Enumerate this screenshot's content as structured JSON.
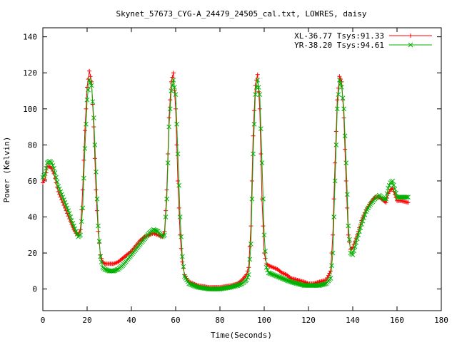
{
  "chart_data": {
    "type": "line",
    "title": "Skynet_57673_CYG-A_24479_24505_cal.txt, LOWRES, daisy",
    "xlabel": "Time(Seconds)",
    "ylabel": "Power (Kelvin)",
    "xlim": [
      0,
      180
    ],
    "ylim": [
      -12,
      145
    ],
    "xticks": [
      "0",
      "20",
      "40",
      "60",
      "80",
      "100",
      "120",
      "140",
      "160",
      "180"
    ],
    "yticks": [
      "0",
      "20",
      "40",
      "60",
      "80",
      "100",
      "120",
      "140"
    ],
    "legend_position": "top-right",
    "grid": false,
    "series": [
      {
        "name": "XL-36.77 Tsys:91.33",
        "color": "#ff0000",
        "marker": "plus",
        "points": [
          [
            0,
            59
          ],
          [
            1,
            61
          ],
          [
            2,
            68
          ],
          [
            3,
            68
          ],
          [
            4,
            67
          ],
          [
            5,
            64
          ],
          [
            6,
            59
          ],
          [
            7,
            54
          ],
          [
            8,
            51
          ],
          [
            9,
            48
          ],
          [
            10,
            45
          ],
          [
            11,
            42
          ],
          [
            12,
            39
          ],
          [
            13,
            36
          ],
          [
            14,
            33
          ],
          [
            15,
            31
          ],
          [
            16,
            30
          ],
          [
            17,
            33
          ],
          [
            18,
            55
          ],
          [
            19,
            88
          ],
          [
            20,
            112
          ],
          [
            21,
            121
          ],
          [
            22,
            115
          ],
          [
            23,
            90
          ],
          [
            24,
            55
          ],
          [
            25,
            32
          ],
          [
            26,
            19
          ],
          [
            27,
            15
          ],
          [
            28,
            14
          ],
          [
            30,
            14
          ],
          [
            32,
            14
          ],
          [
            34,
            15
          ],
          [
            36,
            17
          ],
          [
            38,
            19
          ],
          [
            40,
            21
          ],
          [
            42,
            24
          ],
          [
            44,
            27
          ],
          [
            46,
            29
          ],
          [
            48,
            30
          ],
          [
            50,
            31
          ],
          [
            52,
            30
          ],
          [
            54,
            29
          ],
          [
            55,
            32
          ],
          [
            56,
            55
          ],
          [
            57,
            95
          ],
          [
            58,
            115
          ],
          [
            59,
            120
          ],
          [
            60,
            100
          ],
          [
            61,
            60
          ],
          [
            62,
            30
          ],
          [
            63,
            15
          ],
          [
            64,
            8
          ],
          [
            66,
            4
          ],
          [
            68,
            3
          ],
          [
            70,
            2
          ],
          [
            75,
            1
          ],
          [
            80,
            1
          ],
          [
            85,
            2
          ],
          [
            88,
            3
          ],
          [
            90,
            5
          ],
          [
            92,
            8
          ],
          [
            93,
            12
          ],
          [
            94,
            35
          ],
          [
            95,
            85
          ],
          [
            96,
            113
          ],
          [
            97,
            119
          ],
          [
            98,
            100
          ],
          [
            99,
            50
          ],
          [
            100,
            20
          ],
          [
            101,
            14
          ],
          [
            102,
            13
          ],
          [
            104,
            12
          ],
          [
            106,
            11
          ],
          [
            108,
            9
          ],
          [
            110,
            8
          ],
          [
            112,
            6
          ],
          [
            115,
            5
          ],
          [
            118,
            4
          ],
          [
            120,
            3
          ],
          [
            122,
            3
          ],
          [
            125,
            4
          ],
          [
            128,
            5
          ],
          [
            130,
            10
          ],
          [
            131,
            30
          ],
          [
            132,
            70
          ],
          [
            133,
            105
          ],
          [
            134,
            118
          ],
          [
            135,
            115
          ],
          [
            136,
            95
          ],
          [
            137,
            60
          ],
          [
            138,
            30
          ],
          [
            139,
            22
          ],
          [
            140,
            23
          ],
          [
            142,
            30
          ],
          [
            144,
            38
          ],
          [
            146,
            44
          ],
          [
            148,
            48
          ],
          [
            150,
            51
          ],
          [
            152,
            51
          ],
          [
            154,
            49
          ],
          [
            155,
            48
          ],
          [
            156,
            53
          ],
          [
            157,
            55
          ],
          [
            158,
            56
          ],
          [
            160,
            49
          ],
          [
            162,
            49
          ],
          [
            165,
            48
          ]
        ]
      },
      {
        "name": "YR-38.20 Tsys:94.61",
        "color": "#00b000",
        "marker": "cross",
        "points": [
          [
            0,
            62
          ],
          [
            1,
            64
          ],
          [
            2,
            70
          ],
          [
            3,
            71
          ],
          [
            4,
            70
          ],
          [
            5,
            67
          ],
          [
            6,
            62
          ],
          [
            7,
            57
          ],
          [
            8,
            54
          ],
          [
            9,
            51
          ],
          [
            10,
            48
          ],
          [
            11,
            45
          ],
          [
            12,
            42
          ],
          [
            13,
            38
          ],
          [
            14,
            35
          ],
          [
            15,
            32
          ],
          [
            16,
            29
          ],
          [
            17,
            30
          ],
          [
            18,
            45
          ],
          [
            19,
            78
          ],
          [
            20,
            105
          ],
          [
            21,
            116
          ],
          [
            22,
            113
          ],
          [
            23,
            95
          ],
          [
            24,
            65
          ],
          [
            25,
            35
          ],
          [
            26,
            18
          ],
          [
            27,
            12
          ],
          [
            28,
            11
          ],
          [
            30,
            10
          ],
          [
            32,
            10
          ],
          [
            34,
            11
          ],
          [
            36,
            13
          ],
          [
            38,
            16
          ],
          [
            40,
            19
          ],
          [
            42,
            22
          ],
          [
            44,
            25
          ],
          [
            46,
            28
          ],
          [
            48,
            31
          ],
          [
            50,
            33
          ],
          [
            52,
            32
          ],
          [
            54,
            29
          ],
          [
            55,
            30
          ],
          [
            56,
            50
          ],
          [
            57,
            90
          ],
          [
            58,
            110
          ],
          [
            59,
            116
          ],
          [
            60,
            108
          ],
          [
            61,
            75
          ],
          [
            62,
            40
          ],
          [
            63,
            18
          ],
          [
            64,
            7
          ],
          [
            66,
            3
          ],
          [
            68,
            2
          ],
          [
            70,
            1
          ],
          [
            75,
            0
          ],
          [
            80,
            0
          ],
          [
            85,
            1
          ],
          [
            88,
            2
          ],
          [
            90,
            3
          ],
          [
            92,
            5
          ],
          [
            93,
            8
          ],
          [
            94,
            25
          ],
          [
            95,
            75
          ],
          [
            96,
            108
          ],
          [
            97,
            116
          ],
          [
            98,
            108
          ],
          [
            99,
            70
          ],
          [
            100,
            30
          ],
          [
            101,
            12
          ],
          [
            102,
            9
          ],
          [
            104,
            8
          ],
          [
            106,
            7
          ],
          [
            108,
            6
          ],
          [
            110,
            5
          ],
          [
            112,
            4
          ],
          [
            115,
            3
          ],
          [
            118,
            2
          ],
          [
            120,
            2
          ],
          [
            122,
            2
          ],
          [
            125,
            2
          ],
          [
            128,
            3
          ],
          [
            130,
            6
          ],
          [
            131,
            20
          ],
          [
            132,
            60
          ],
          [
            133,
            100
          ],
          [
            134,
            116
          ],
          [
            135,
            112
          ],
          [
            136,
            100
          ],
          [
            137,
            70
          ],
          [
            138,
            35
          ],
          [
            139,
            20
          ],
          [
            140,
            19
          ],
          [
            142,
            28
          ],
          [
            144,
            36
          ],
          [
            146,
            43
          ],
          [
            148,
            47
          ],
          [
            150,
            50
          ],
          [
            152,
            52
          ],
          [
            154,
            50
          ],
          [
            155,
            50
          ],
          [
            156,
            56
          ],
          [
            157,
            59
          ],
          [
            158,
            60
          ],
          [
            160,
            51
          ],
          [
            162,
            51
          ],
          [
            165,
            51
          ]
        ]
      }
    ]
  }
}
